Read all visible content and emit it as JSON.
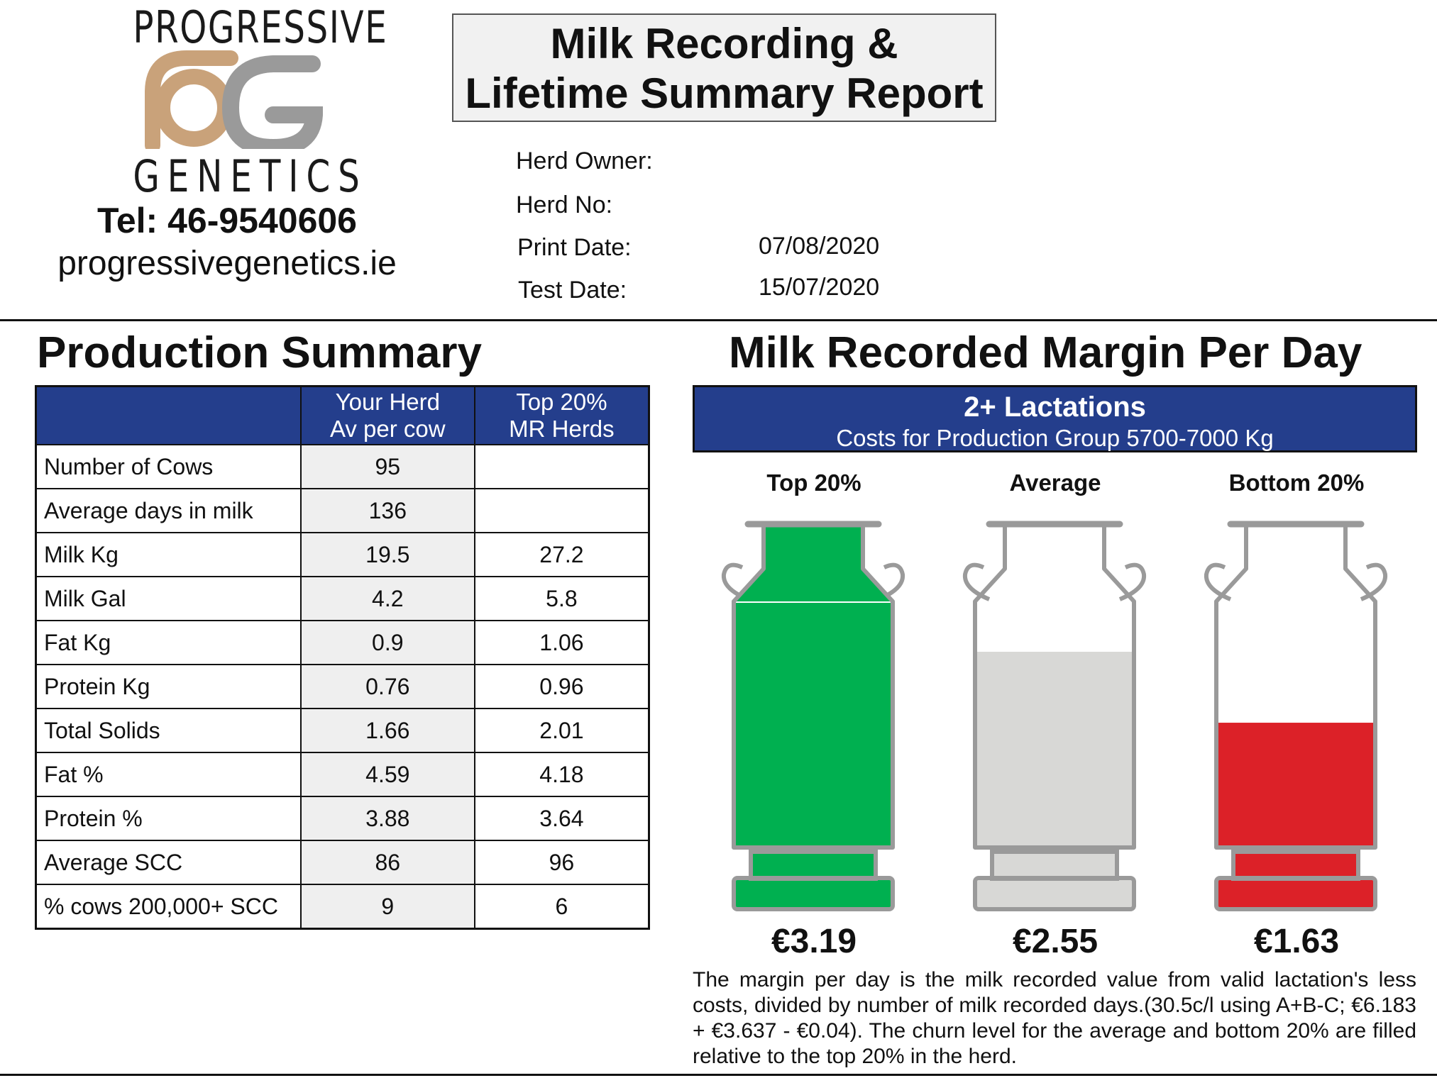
{
  "logo": {
    "top_text": "PROGRESSIVE",
    "bottom_text": "GENETICS",
    "accent_color": "#c9a27a",
    "grey_color": "#9a9a9a"
  },
  "contact": {
    "tel": "Tel: 46-9540606",
    "website": "progressivegenetics.ie"
  },
  "report_title": {
    "line1": "Milk Recording &",
    "line2": "Lifetime Summary Report"
  },
  "meta": {
    "herd_owner_label": "Herd Owner:",
    "herd_no_label": "Herd No:",
    "print_date_label": "Print Date:",
    "print_date": "07/08/2020",
    "test_date_label": "Test Date:",
    "test_date": "15/07/2020"
  },
  "production": {
    "title": "Production Summary",
    "header_color": "#243e8c",
    "col1_line1": "Your Herd",
    "col1_line2": "Av per cow",
    "col2_line1": "Top 20%",
    "col2_line2": "MR Herds",
    "rows": [
      {
        "label": "Number of Cows",
        "your_herd": "95",
        "top20": ""
      },
      {
        "label": "Average days in milk",
        "your_herd": "136",
        "top20": ""
      },
      {
        "label": "Milk Kg",
        "your_herd": "19.5",
        "top20": "27.2"
      },
      {
        "label": "Milk Gal",
        "your_herd": "4.2",
        "top20": "5.8"
      },
      {
        "label": "Fat Kg",
        "your_herd": "0.9",
        "top20": "1.06"
      },
      {
        "label": "Protein Kg",
        "your_herd": "0.76",
        "top20": "0.96"
      },
      {
        "label": "Total Solids",
        "your_herd": "1.66",
        "top20": "2.01"
      },
      {
        "label": "Fat %",
        "your_herd": "4.59",
        "top20": "4.18"
      },
      {
        "label": "Protein %",
        "your_herd": "3.88",
        "top20": "3.64"
      },
      {
        "label": "Average SCC",
        "your_herd": "86",
        "top20": "96"
      },
      {
        "label": "% cows 200,000+ SCC",
        "your_herd": "9",
        "top20": "6"
      }
    ]
  },
  "margin": {
    "title": "Milk Recorded Margin Per Day",
    "banner_line1": "2+ Lactations",
    "banner_line2": "Costs for Production Group 5700-7000 Kg",
    "churns": [
      {
        "label": "Top 20%",
        "value": "€3.19",
        "fill_fraction": 1.0,
        "fill_color": "#00b050"
      },
      {
        "label": "Average",
        "value": "€2.55",
        "fill_fraction": 0.8,
        "fill_color": "#d8d8d6"
      },
      {
        "label": "Bottom 20%",
        "value": "€1.63",
        "fill_fraction": 0.51,
        "fill_color": "#dc2128"
      }
    ],
    "note": "The margin per day is the milk recorded value from valid lactation's less costs, divided by number of milk recorded days.(30.5c/l using A+B-C; €6.183 + €3.637 - €0.04). The churn level for the average and bottom 20% are filled relative to the top 20% in the herd."
  }
}
